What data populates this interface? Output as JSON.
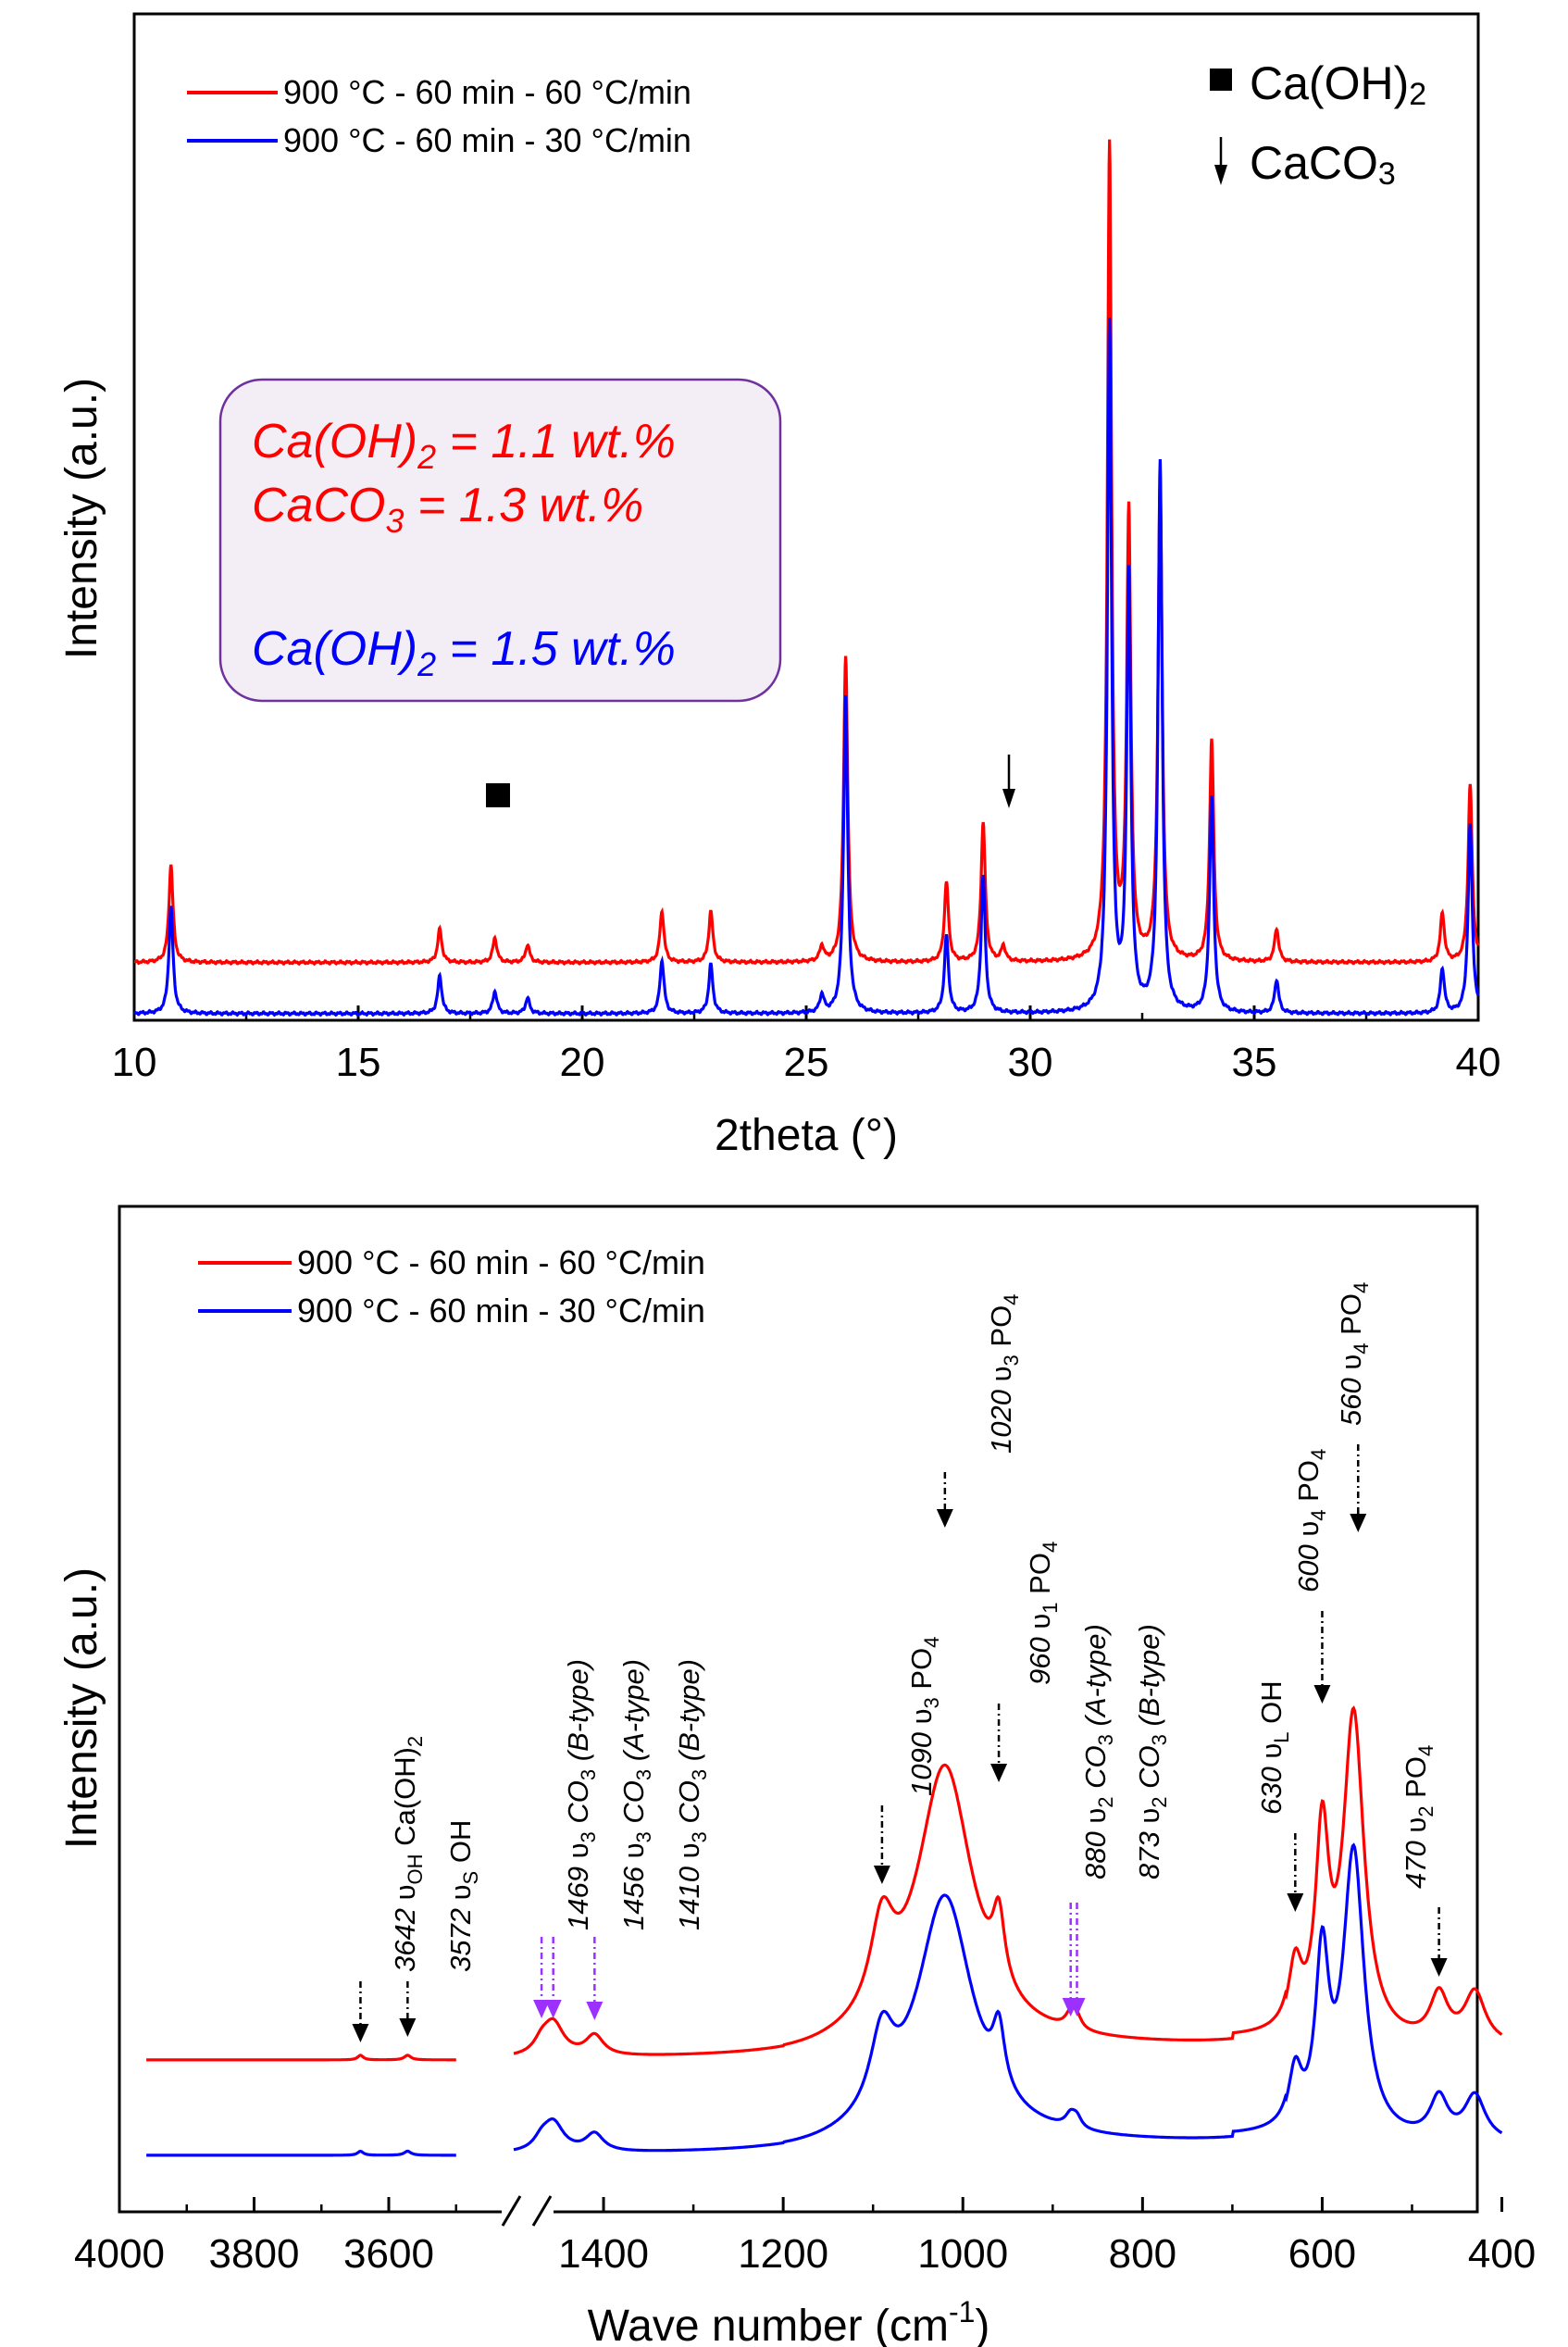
{
  "chart_data": [
    {
      "type": "line",
      "xlabel": "2theta (°)",
      "ylabel": "Intensity (a.u.)",
      "xlim": [
        10,
        40
      ],
      "xticks": [
        "10",
        "15",
        "20",
        "25",
        "30",
        "35",
        "40"
      ],
      "legend_placement": "top-left",
      "series": [
        {
          "name": "900 °C - 60 min - 60 °C/min",
          "color": "#ff0000",
          "baseline": 0.26,
          "peaks": [
            [
              10.82,
              0.44
            ],
            [
              16.82,
              0.15
            ],
            [
              18.05,
              0.11
            ],
            [
              18.78,
              0.08
            ],
            [
              21.78,
              0.23
            ],
            [
              22.87,
              0.23
            ],
            [
              25.35,
              0.07
            ],
            [
              25.88,
              1.38
            ],
            [
              28.13,
              0.36
            ],
            [
              28.95,
              0.63
            ],
            [
              29.4,
              0.07
            ],
            [
              31.77,
              3.67
            ],
            [
              32.2,
              2.0
            ],
            [
              32.9,
              2.16
            ],
            [
              34.05,
              1.0
            ],
            [
              35.5,
              0.15
            ],
            [
              39.2,
              0.22
            ],
            [
              39.82,
              0.8
            ]
          ]
        },
        {
          "name": "900 °C - 60 min - 30 °C/min",
          "color": "#0000ff",
          "baseline": 0.03,
          "peaks": [
            [
              10.82,
              0.48
            ],
            [
              16.82,
              0.17
            ],
            [
              18.05,
              0.1
            ],
            [
              18.78,
              0.07
            ],
            [
              21.78,
              0.24
            ],
            [
              22.87,
              0.22
            ],
            [
              25.35,
              0.08
            ],
            [
              25.88,
              1.43
            ],
            [
              28.13,
              0.35
            ],
            [
              28.95,
              0.62
            ],
            [
              31.77,
              3.1
            ],
            [
              32.2,
              1.95
            ],
            [
              32.9,
              2.47
            ],
            [
              34.05,
              0.97
            ],
            [
              35.5,
              0.15
            ],
            [
              39.2,
              0.2
            ],
            [
              39.82,
              0.85
            ]
          ]
        }
      ],
      "legend_markers": [
        {
          "symbol": "square",
          "label": "Ca(OH)",
          "subscript": "2"
        },
        {
          "symbol": "arrow",
          "label": "CaCO",
          "subscript": "3"
        }
      ],
      "annotations": [
        {
          "text": "Ca(OH)",
          "sub": "2",
          "rest": " = 1.1 wt.%",
          "color": "#ff0000"
        },
        {
          "text": "CaCO",
          "sub": "3",
          "rest": " = 1.3 wt.%",
          "color": "#ff0000"
        },
        {
          "text": "Ca(OH)",
          "sub": "2",
          "rest": " = 1.5 wt.%",
          "color": "#0000ff"
        }
      ]
    },
    {
      "type": "line",
      "xlabel": "Wave number (cm",
      "xlabel_sup": "-1",
      "xlabel_end": ")",
      "ylabel": "Intensity (a.u.)",
      "x_break": [
        3500,
        1500
      ],
      "xticks": [
        "4000",
        "3800",
        "3600",
        "1400",
        "1200",
        "1000",
        "800",
        "600",
        "400"
      ],
      "legend_placement": "top-left",
      "series": [
        {
          "name": "900 °C - 60 min - 60 °C/min",
          "color": "#ff0000"
        },
        {
          "name": "900 °C - 60 min - 30 °C/min",
          "color": "#0000ff"
        }
      ],
      "band_labels": [
        {
          "num": "3642",
          "sym": "υ",
          "sub": "OH",
          "rest": " Ca(OH)",
          "rest_sub": "2",
          "color": "black"
        },
        {
          "num": "3572",
          "sym": "υ",
          "sub": "S",
          "rest": " OH",
          "rest_sub": "",
          "color": "black"
        },
        {
          "num": "1469",
          "sym": "υ",
          "sub": "3",
          "rest": " CO",
          "rest_sub": "3",
          "tail": " (B-type)",
          "color": "purple"
        },
        {
          "num": "1456",
          "sym": "υ",
          "sub": "3",
          "rest": " CO",
          "rest_sub": "3",
          "tail": " (A-type)",
          "color": "purple"
        },
        {
          "num": "1410",
          "sym": "υ",
          "sub": "3",
          "rest": " CO",
          "rest_sub": "3",
          "tail": " (B-type)",
          "color": "purple"
        },
        {
          "num": "1090",
          "sym": "υ",
          "sub": "3",
          "rest": " PO",
          "rest_sub": "4",
          "color": "black"
        },
        {
          "num": "1020",
          "sym": "υ",
          "sub": "3",
          "rest": " PO",
          "rest_sub": "4",
          "color": "black"
        },
        {
          "num": "960",
          "sym": "υ",
          "sub": "1",
          "rest": " PO",
          "rest_sub": "4",
          "color": "black"
        },
        {
          "num": "880",
          "sym": "υ",
          "sub": "2",
          "rest": " CO",
          "rest_sub": "3",
          "tail": " (A-type)",
          "color": "purple"
        },
        {
          "num": "873",
          "sym": "υ",
          "sub": "2",
          "rest": " CO",
          "rest_sub": "3",
          "tail": " (B-type)",
          "color": "purple"
        },
        {
          "num": "630",
          "sym": "υ",
          "sub": "L",
          "rest": " OH",
          "rest_sub": "",
          "color": "black"
        },
        {
          "num": "600",
          "sym": "υ",
          "sub": "4",
          "rest": " PO",
          "rest_sub": "4",
          "color": "black"
        },
        {
          "num": "560",
          "sym": "υ",
          "sub": "4",
          "rest": " PO",
          "rest_sub": "4",
          "color": "black"
        },
        {
          "num": "470",
          "sym": "υ",
          "sub": "2",
          "rest": " PO",
          "rest_sub": "4",
          "color": "black"
        }
      ]
    }
  ]
}
